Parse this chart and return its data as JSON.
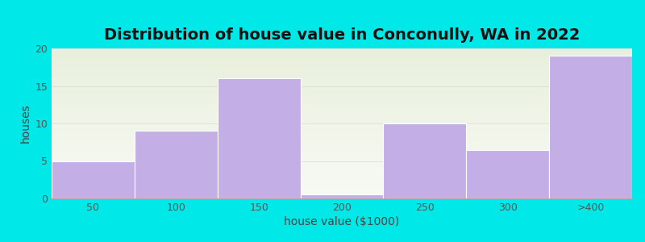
{
  "title": "Distribution of house value in Conconully, WA in 2022",
  "xlabel": "house value ($1000)",
  "ylabel": "houses",
  "categories": [
    "50",
    "100",
    "150",
    "200",
    "250",
    "300",
    ">400"
  ],
  "values": [
    5,
    9,
    16,
    0.5,
    10,
    6.5,
    19
  ],
  "bar_color": "#c4aee6",
  "bar_edgecolor": "#ffffff",
  "background_outer": "#00e8e8",
  "background_inner_top": "#e8f0dc",
  "background_inner_bottom": "#f8faf5",
  "ylim": [
    0,
    20
  ],
  "yticks": [
    0,
    5,
    10,
    15,
    20
  ],
  "title_fontsize": 14,
  "axis_label_fontsize": 10,
  "tick_fontsize": 9,
  "grid_color": "#dddddd",
  "bar_width": 1.0
}
